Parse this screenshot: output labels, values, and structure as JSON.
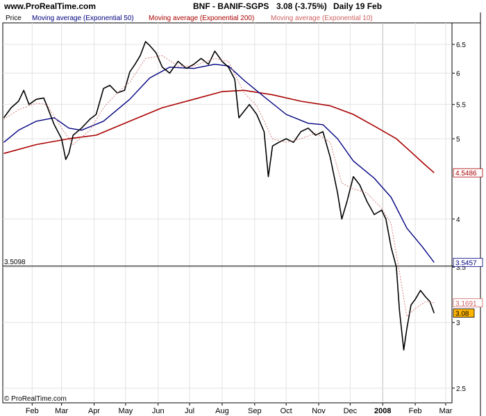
{
  "header": {
    "site": "www.ProRealTime.com",
    "symbol": "BNF - BANIF-SGPS",
    "price": "3.08 (-3.75%)",
    "period": "Daily  19 Feb"
  },
  "legend": {
    "price": "Price",
    "ma50": "Moving average (Exponential 50)",
    "ma200": "Moving average (Exponential 200)",
    "ma10": "Moving average (Exponential 10)"
  },
  "footer": {
    "copyright": "© ProRealTime.com"
  },
  "colors": {
    "price": "#000000",
    "ma50": "#000080",
    "ma200": "#aa0000",
    "ma10": "#d06060",
    "last_badge": "#ffb400",
    "grid": "#e2e2e2"
  },
  "chart_data": {
    "type": "line",
    "y_scale": "log",
    "ylim": [
      2.4,
      6.9
    ],
    "y_ticks": [
      2.5,
      3,
      3.5,
      4,
      5,
      5.5,
      6,
      6.5
    ],
    "x_ticks": [
      "Feb",
      "Mar",
      "Apr",
      "May",
      "Jun",
      "Jul",
      "Aug",
      "Sep",
      "Oct",
      "Nov",
      "Dec",
      "2008",
      "Feb",
      "Mar"
    ],
    "x_tick_positions": [
      "2007-02-01",
      "2007-03-01",
      "2007-04-01",
      "2007-05-01",
      "2007-06-01",
      "2007-07-01",
      "2007-08-01",
      "2007-09-01",
      "2007-10-01",
      "2007-11-01",
      "2007-12-01",
      "2008-01-01",
      "2008-02-01",
      "2008-03-01"
    ],
    "xlim": [
      "2007-01-04",
      "2008-03-07"
    ],
    "horizontal_line": {
      "value": 3.5098,
      "label": "3.5098"
    },
    "value_labels": [
      {
        "series": "Moving average (Exponential 200)",
        "value": "4.5486"
      },
      {
        "series": "Moving average (Exponential 50)",
        "value": "3.5457"
      },
      {
        "series": "Moving average (Exponential 10)",
        "value": "3.1691"
      },
      {
        "series": "Price",
        "value": "3.08"
      }
    ],
    "series": [
      {
        "name": "Price",
        "points": [
          [
            "2007-01-05",
            5.3
          ],
          [
            "2007-01-12",
            5.45
          ],
          [
            "2007-01-19",
            5.55
          ],
          [
            "2007-01-24",
            5.72
          ],
          [
            "2007-01-29",
            5.5
          ],
          [
            "2007-02-05",
            5.58
          ],
          [
            "2007-02-12",
            5.6
          ],
          [
            "2007-02-15",
            5.48
          ],
          [
            "2007-02-22",
            5.2
          ],
          [
            "2007-03-01",
            5.0
          ],
          [
            "2007-03-05",
            4.72
          ],
          [
            "2007-03-08",
            4.8
          ],
          [
            "2007-03-12",
            5.05
          ],
          [
            "2007-03-20",
            5.15
          ],
          [
            "2007-03-28",
            5.28
          ],
          [
            "2007-04-03",
            5.35
          ],
          [
            "2007-04-10",
            5.75
          ],
          [
            "2007-04-16",
            5.8
          ],
          [
            "2007-04-23",
            5.68
          ],
          [
            "2007-04-30",
            5.72
          ],
          [
            "2007-05-05",
            6.02
          ],
          [
            "2007-05-10",
            6.15
          ],
          [
            "2007-05-15",
            6.3
          ],
          [
            "2007-05-20",
            6.55
          ],
          [
            "2007-05-24",
            6.48
          ],
          [
            "2007-05-30",
            6.35
          ],
          [
            "2007-06-05",
            6.1
          ],
          [
            "2007-06-12",
            6.0
          ],
          [
            "2007-06-20",
            6.2
          ],
          [
            "2007-06-28",
            6.08
          ],
          [
            "2007-07-05",
            6.15
          ],
          [
            "2007-07-12",
            6.25
          ],
          [
            "2007-07-19",
            6.15
          ],
          [
            "2007-07-25",
            6.38
          ],
          [
            "2007-08-01",
            6.2
          ],
          [
            "2007-08-07",
            6.1
          ],
          [
            "2007-08-13",
            5.9
          ],
          [
            "2007-08-17",
            5.3
          ],
          [
            "2007-08-22",
            5.4
          ],
          [
            "2007-08-27",
            5.5
          ],
          [
            "2007-09-03",
            5.35
          ],
          [
            "2007-09-10",
            5.1
          ],
          [
            "2007-09-14",
            4.5
          ],
          [
            "2007-09-18",
            4.9
          ],
          [
            "2007-09-24",
            4.95
          ],
          [
            "2007-10-01",
            5.0
          ],
          [
            "2007-10-08",
            4.95
          ],
          [
            "2007-10-15",
            5.1
          ],
          [
            "2007-10-22",
            5.15
          ],
          [
            "2007-10-29",
            5.05
          ],
          [
            "2007-11-05",
            5.1
          ],
          [
            "2007-11-12",
            4.75
          ],
          [
            "2007-11-19",
            4.3
          ],
          [
            "2007-11-23",
            4.0
          ],
          [
            "2007-11-28",
            4.2
          ],
          [
            "2007-12-04",
            4.5
          ],
          [
            "2007-12-10",
            4.4
          ],
          [
            "2007-12-17",
            4.2
          ],
          [
            "2007-12-24",
            4.05
          ],
          [
            "2007-12-31",
            4.1
          ],
          [
            "2008-01-04",
            4.0
          ],
          [
            "2008-01-09",
            3.7
          ],
          [
            "2008-01-14",
            3.5
          ],
          [
            "2008-01-17",
            3.1
          ],
          [
            "2008-01-21",
            2.78
          ],
          [
            "2008-01-24",
            2.95
          ],
          [
            "2008-01-28",
            3.15
          ],
          [
            "2008-02-01",
            3.2
          ],
          [
            "2008-02-06",
            3.28
          ],
          [
            "2008-02-11",
            3.22
          ],
          [
            "2008-02-15",
            3.18
          ],
          [
            "2008-02-19",
            3.08
          ]
        ]
      },
      {
        "name": "Moving average (Exponential 10)",
        "points": [
          [
            "2007-01-05",
            5.28
          ],
          [
            "2007-01-19",
            5.42
          ],
          [
            "2007-02-05",
            5.52
          ],
          [
            "2007-02-15",
            5.5
          ],
          [
            "2007-03-01",
            5.15
          ],
          [
            "2007-03-12",
            4.92
          ],
          [
            "2007-03-28",
            5.12
          ],
          [
            "2007-04-10",
            5.45
          ],
          [
            "2007-04-23",
            5.68
          ],
          [
            "2007-05-05",
            5.85
          ],
          [
            "2007-05-20",
            6.25
          ],
          [
            "2007-06-05",
            6.3
          ],
          [
            "2007-06-20",
            6.12
          ],
          [
            "2007-07-05",
            6.12
          ],
          [
            "2007-07-25",
            6.25
          ],
          [
            "2007-08-07",
            6.2
          ],
          [
            "2007-08-22",
            5.68
          ],
          [
            "2007-09-03",
            5.48
          ],
          [
            "2007-09-18",
            5.0
          ],
          [
            "2007-10-01",
            4.95
          ],
          [
            "2007-10-15",
            5.0
          ],
          [
            "2007-10-29",
            5.08
          ],
          [
            "2007-11-12",
            4.95
          ],
          [
            "2007-11-23",
            4.42
          ],
          [
            "2007-12-04",
            4.35
          ],
          [
            "2007-12-17",
            4.3
          ],
          [
            "2007-12-31",
            4.12
          ],
          [
            "2008-01-09",
            3.95
          ],
          [
            "2008-01-17",
            3.45
          ],
          [
            "2008-01-24",
            3.05
          ],
          [
            "2008-02-01",
            3.12
          ],
          [
            "2008-02-11",
            3.18
          ],
          [
            "2008-02-19",
            3.17
          ]
        ]
      },
      {
        "name": "Moving average (Exponential 50)",
        "points": [
          [
            "2007-01-05",
            4.95
          ],
          [
            "2007-01-19",
            5.12
          ],
          [
            "2007-02-05",
            5.25
          ],
          [
            "2007-02-22",
            5.3
          ],
          [
            "2007-03-08",
            5.15
          ],
          [
            "2007-03-20",
            5.12
          ],
          [
            "2007-04-10",
            5.25
          ],
          [
            "2007-05-05",
            5.58
          ],
          [
            "2007-05-24",
            5.92
          ],
          [
            "2007-06-12",
            6.1
          ],
          [
            "2007-07-05",
            6.08
          ],
          [
            "2007-07-25",
            6.15
          ],
          [
            "2007-08-07",
            6.12
          ],
          [
            "2007-08-22",
            5.88
          ],
          [
            "2007-09-10",
            5.62
          ],
          [
            "2007-10-01",
            5.35
          ],
          [
            "2007-10-22",
            5.22
          ],
          [
            "2007-11-05",
            5.2
          ],
          [
            "2007-11-19",
            5.0
          ],
          [
            "2007-12-04",
            4.7
          ],
          [
            "2007-12-24",
            4.48
          ],
          [
            "2008-01-09",
            4.25
          ],
          [
            "2008-01-24",
            3.9
          ],
          [
            "2008-02-08",
            3.7
          ],
          [
            "2008-02-19",
            3.5457
          ]
        ]
      },
      {
        "name": "Moving average (Exponential 200)",
        "points": [
          [
            "2007-01-05",
            4.8
          ],
          [
            "2007-02-05",
            4.92
          ],
          [
            "2007-03-08",
            5.0
          ],
          [
            "2007-04-03",
            5.05
          ],
          [
            "2007-05-05",
            5.25
          ],
          [
            "2007-06-05",
            5.45
          ],
          [
            "2007-07-05",
            5.58
          ],
          [
            "2007-08-01",
            5.7
          ],
          [
            "2007-08-22",
            5.72
          ],
          [
            "2007-09-18",
            5.65
          ],
          [
            "2007-10-15",
            5.55
          ],
          [
            "2007-11-12",
            5.48
          ],
          [
            "2007-12-04",
            5.35
          ],
          [
            "2007-12-24",
            5.18
          ],
          [
            "2008-01-14",
            5.0
          ],
          [
            "2008-01-28",
            4.82
          ],
          [
            "2008-02-08",
            4.68
          ],
          [
            "2008-02-19",
            4.5486
          ]
        ]
      }
    ]
  }
}
